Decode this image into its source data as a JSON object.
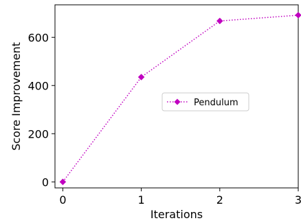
{
  "chart_data": {
    "type": "line",
    "title": "",
    "xlabel": "Iterations",
    "ylabel": "Score Improvement",
    "x": [
      0,
      1,
      2,
      3
    ],
    "xlim": [
      -0.1,
      3.0
    ],
    "ylim": [
      -25,
      735
    ],
    "xticks": [
      "0",
      "1",
      "2",
      "3"
    ],
    "yticks": [
      "0",
      "200",
      "400",
      "600"
    ],
    "grid": false,
    "legend_position": "center-right",
    "series": [
      {
        "name": "Pendulum",
        "values": [
          0,
          435,
          668,
          692
        ],
        "color": "#c000c0",
        "linestyle": "dotted",
        "marker": "diamond"
      }
    ]
  }
}
